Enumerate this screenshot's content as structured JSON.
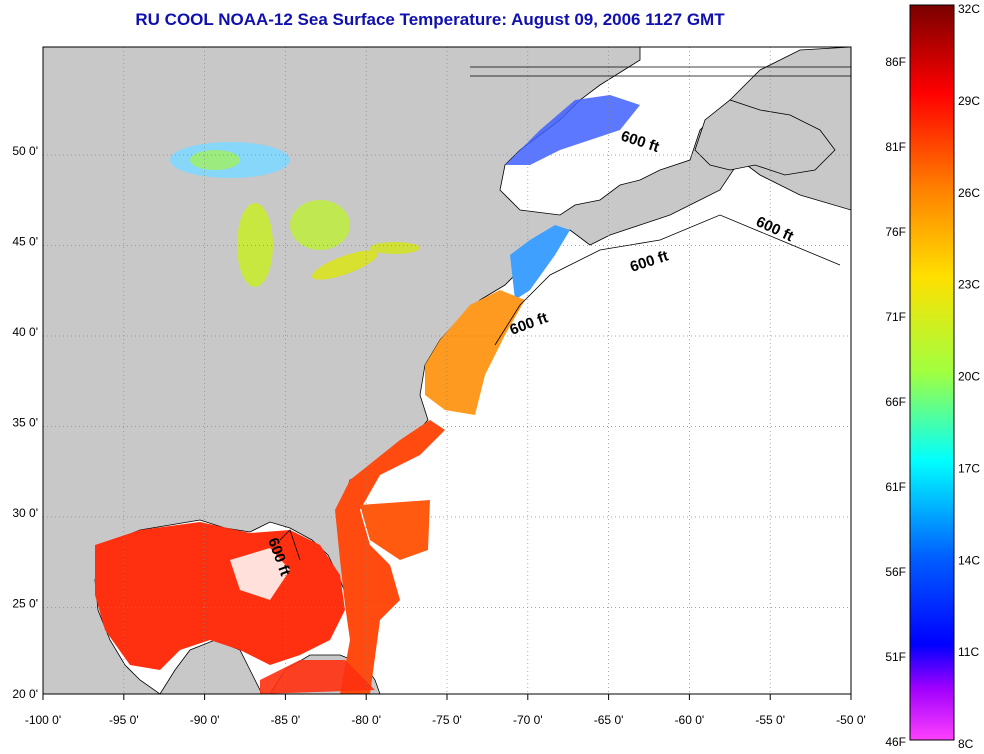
{
  "title": "RU COOL  NOAA-12  Sea Surface Temperature:  August 09, 2006 1127 GMT",
  "map": {
    "lon_ticks": [
      "-100 0'",
      "-95 0'",
      "-90 0'",
      "-85 0'",
      "-80 0'",
      "-75 0'",
      "-70 0'",
      "-65 0'",
      "-60 0'",
      "-55 0'",
      "-50 0'"
    ],
    "lat_ticks": [
      "20 0'",
      "25 0'",
      "30 0'",
      "35 0'",
      "40 0'",
      "45 0'",
      "50 0'"
    ],
    "isobath_labels": [
      "600 ft",
      "600 ft",
      "600 ft",
      "600 ft",
      "600 ft"
    ],
    "colors": {
      "land": "#c8c8c8",
      "ocean": "#ffffff",
      "grid": "#888888"
    }
  },
  "colorbar": {
    "celsius": [
      "32C",
      "29C",
      "26C",
      "23C",
      "20C",
      "17C",
      "14C",
      "11C",
      "8C"
    ],
    "fahrenheit": [
      "86F",
      "81F",
      "76F",
      "71F",
      "66F",
      "61F",
      "56F",
      "51F",
      "46F"
    ],
    "gradient": [
      "#7a0000",
      "#ff0000",
      "#ff8000",
      "#ffe000",
      "#a0ff40",
      "#00ffff",
      "#0060ff",
      "#0000ff",
      "#c000ff",
      "#ff40ff"
    ]
  }
}
